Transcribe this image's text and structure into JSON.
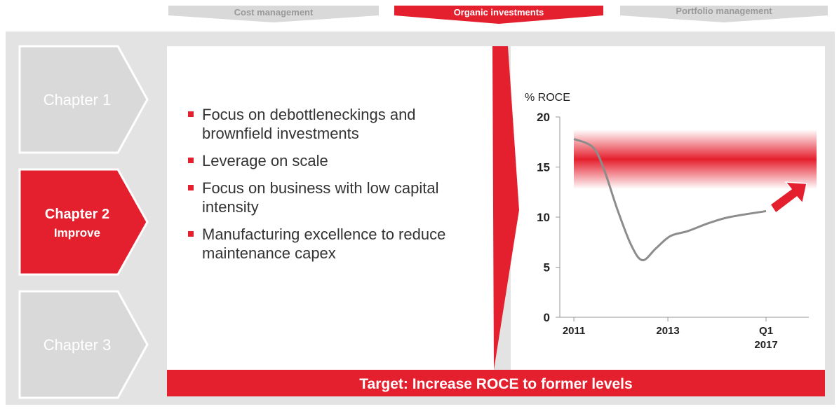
{
  "tabs": [
    "Cost management",
    "Organic investments",
    "Portfolio management"
  ],
  "chapters": [
    {
      "title": "Chapter 1"
    },
    {
      "title": "Chapter 2",
      "subtitle": "Improve"
    },
    {
      "title": "Chapter 3"
    }
  ],
  "bullets": [
    "Focus on debottleneckings and brownfield investments",
    "Leverage on scale",
    "Focus on business with low capital intensity",
    "Manufacturing excellence to reduce maintenance capex"
  ],
  "banner": "Target: Increase ROCE to former levels",
  "chart_data": {
    "type": "line",
    "ylabel": "% ROCE",
    "x": [
      0,
      0.4,
      0.63,
      0.93,
      1.22,
      1.46,
      1.75,
      2.05,
      2.42,
      2.87,
      3.31,
      4.09
    ],
    "series": [
      {
        "color": "#8c8c8c",
        "values": [
          17.8,
          17.0,
          14.9,
          10.7,
          7.2,
          5.7,
          6.9,
          8.1,
          8.6,
          9.4,
          10.0,
          10.6
        ]
      }
    ],
    "xlim": [
      -0.3,
      5.0
    ],
    "xticks": [
      {
        "value": 0,
        "label": "2011"
      },
      {
        "value": 2,
        "label": "2013"
      },
      {
        "value": 4.09,
        "label": "Q1 2017"
      }
    ],
    "ylim": [
      0,
      20
    ],
    "yticks": [
      0,
      5,
      10,
      15,
      20
    ]
  }
}
